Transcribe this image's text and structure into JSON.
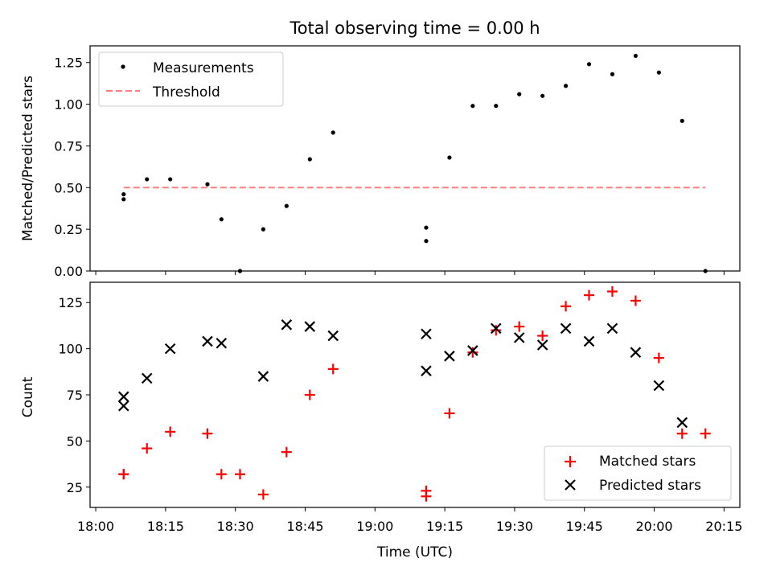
{
  "chart_data": {
    "title": "Total observing time = 0.00 h",
    "xlabel": "Time (UTC)",
    "x_ticks": [
      "18:00",
      "18:15",
      "18:30",
      "18:45",
      "19:00",
      "19:15",
      "19:30",
      "19:45",
      "20:00",
      "20:15"
    ],
    "panels": [
      {
        "type": "scatter",
        "ylabel": "Matched/Predicted stars",
        "ylim": [
          0,
          1.35
        ],
        "y_ticks": [
          "0.00",
          "0.25",
          "0.50",
          "0.75",
          "1.00",
          "1.25"
        ],
        "legend_position": "top-left",
        "series": [
          {
            "name": "Measurements",
            "marker": "dot",
            "color": "#000000",
            "x": [
              "18:06",
              "18:06",
              "18:11",
              "18:16",
              "18:24",
              "18:27",
              "18:31",
              "18:36",
              "18:41",
              "18:46",
              "18:51",
              "19:11",
              "19:11",
              "19:16",
              "19:21",
              "19:26",
              "19:31",
              "19:36",
              "19:41",
              "19:46",
              "19:51",
              "19:56",
              "20:01",
              "20:06",
              "20:11"
            ],
            "y": [
              0.46,
              0.43,
              0.55,
              0.55,
              0.52,
              0.31,
              0.0,
              0.25,
              0.39,
              0.67,
              0.83,
              0.26,
              0.18,
              0.68,
              0.99,
              0.99,
              1.06,
              1.05,
              1.11,
              1.24,
              1.18,
              1.29,
              1.19,
              0.9,
              0.0
            ]
          },
          {
            "name": "Threshold",
            "style": "dashed",
            "color": "#ff7f7f",
            "x": [
              "18:06",
              "20:11"
            ],
            "y": [
              0.5,
              0.5
            ]
          }
        ]
      },
      {
        "type": "scatter",
        "ylabel": "Count",
        "ylim": [
          14,
          136
        ],
        "y_ticks": [
          "25",
          "50",
          "75",
          "100",
          "125"
        ],
        "legend_position": "bottom-right",
        "series": [
          {
            "name": "Matched stars",
            "marker": "plus",
            "color": "#ff0000",
            "x": [
              "18:06",
              "18:06",
              "18:11",
              "18:16",
              "18:24",
              "18:27",
              "18:31",
              "18:36",
              "18:41",
              "18:46",
              "18:51",
              "19:11",
              "19:11",
              "19:16",
              "19:21",
              "19:26",
              "19:31",
              "19:36",
              "19:41",
              "19:46",
              "19:51",
              "19:56",
              "20:01",
              "20:06",
              "20:11"
            ],
            "y": [
              32,
              32,
              46,
              55,
              54,
              32,
              32,
              21,
              44,
              75,
              89,
              23,
              20,
              65,
              98,
              110,
              112,
              107,
              123,
              129,
              131,
              126,
              95,
              54,
              54
            ]
          },
          {
            "name": "Predicted stars",
            "marker": "x",
            "color": "#000000",
            "x": [
              "18:06",
              "18:06",
              "18:11",
              "18:16",
              "18:24",
              "18:27",
              "18:36",
              "18:41",
              "18:46",
              "18:51",
              "19:11",
              "19:11",
              "19:16",
              "19:21",
              "19:26",
              "19:31",
              "19:36",
              "19:41",
              "19:46",
              "19:51",
              "19:56",
              "20:01",
              "20:06"
            ],
            "y": [
              69,
              74,
              84,
              100,
              104,
              103,
              85,
              113,
              112,
              107,
              88,
              108,
              96,
              99,
              111,
              106,
              102,
              111,
              104,
              111,
              98,
              80,
              60
            ]
          }
        ]
      }
    ]
  }
}
